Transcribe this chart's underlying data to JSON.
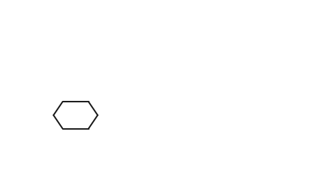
{
  "bg_color": "#ffffff",
  "line_color": "#000000",
  "line_width": 1.5,
  "figsize": [
    4.49,
    2.55
  ],
  "dpi": 100
}
